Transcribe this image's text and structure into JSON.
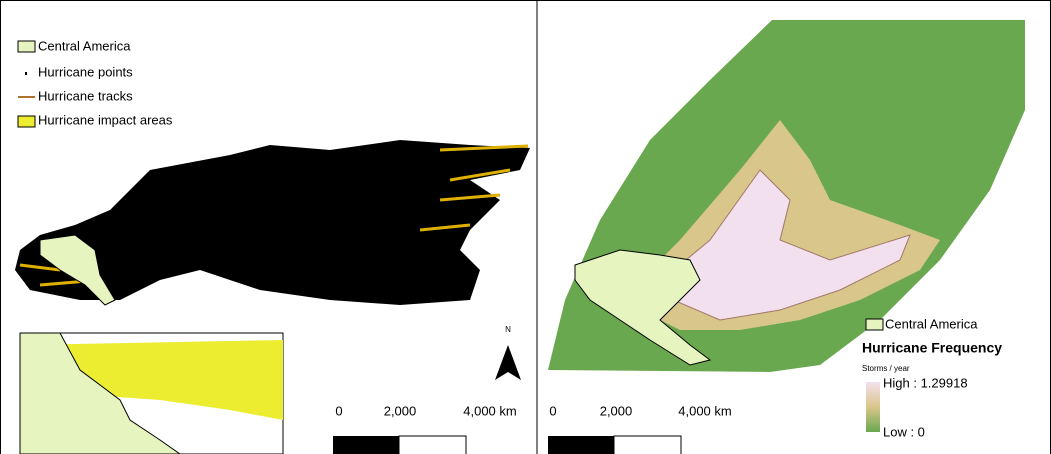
{
  "left_panel": {
    "legend": [
      "Central America",
      "Hurricane points",
      "Hurricane tracks",
      "Hurricane impact areas"
    ],
    "north_arrow": "N",
    "scale_bar": [
      "0",
      "2,000",
      "4,000 km"
    ]
  },
  "right_panel": {
    "legend": {
      "layer": "Central America",
      "title": "Hurricane Frequency",
      "unit": "Storms / year",
      "high": "High : 1.29918",
      "low": "Low : 0"
    },
    "scale_bar": [
      "0",
      "2,000",
      "4,000 km"
    ]
  }
}
